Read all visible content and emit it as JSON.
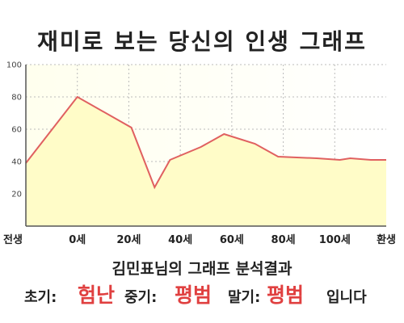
{
  "title": "재미로 보는 당신의 인생 그래프",
  "chart_data": {
    "type": "area",
    "title": "재미로 보는 당신의 인생 그래프",
    "x_tick_labels": [
      "전생",
      "0세",
      "20세",
      "40세",
      "60세",
      "80세",
      "100세",
      "환생"
    ],
    "x_tick_positions": [
      -20,
      0,
      20,
      40,
      60,
      80,
      100,
      120
    ],
    "y_ticks": [
      20,
      40,
      60,
      80,
      100
    ],
    "ylim": [
      0,
      100
    ],
    "xlim": [
      -20,
      120
    ],
    "grid": true,
    "points": [
      {
        "x": -20,
        "y": 39
      },
      {
        "x": 0,
        "y": 80
      },
      {
        "x": 21,
        "y": 61
      },
      {
        "x": 30,
        "y": 24
      },
      {
        "x": 36,
        "y": 41
      },
      {
        "x": 48,
        "y": 49
      },
      {
        "x": 57,
        "y": 57
      },
      {
        "x": 69,
        "y": 51
      },
      {
        "x": 78,
        "y": 43
      },
      {
        "x": 93,
        "y": 42
      },
      {
        "x": 102,
        "y": 41
      },
      {
        "x": 106,
        "y": 42
      },
      {
        "x": 114,
        "y": 41
      },
      {
        "x": 120,
        "y": 41
      }
    ],
    "colors": {
      "line": "#e06060",
      "fill": "#fffcc8",
      "grid": "#bbbbbb",
      "axis": "#555555"
    }
  },
  "summary": "김민표님의 그래프 분석결과",
  "verdict": {
    "early_label": "초기:",
    "early_value": "험난",
    "mid_label": "중기:",
    "mid_value": "평범",
    "late_label": "말기:",
    "late_value": "평범",
    "ending": "입니다"
  }
}
